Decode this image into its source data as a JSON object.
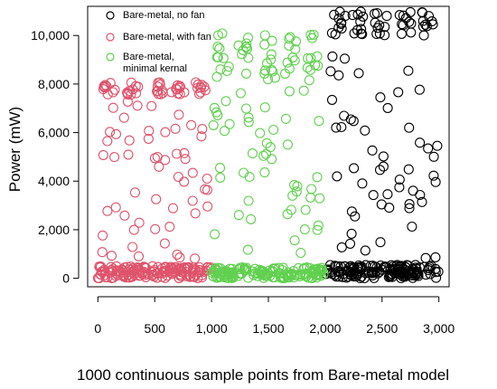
{
  "chart_data": {
    "type": "scatter",
    "title": "",
    "xlabel": "1000 continuous sample points from Bare-metal model",
    "ylabel": "Power (mW)",
    "xlim": [
      -90,
      3090
    ],
    "ylim": [
      -350,
      11200
    ],
    "x_ticks": [
      0,
      500,
      1000,
      1500,
      2000,
      2500,
      3000
    ],
    "x_tick_labels": [
      "0",
      "500",
      "1,000",
      "1,500",
      "2,000",
      "2,500",
      "3,000"
    ],
    "y_ticks": [
      0,
      2000,
      4000,
      6000,
      8000,
      10000
    ],
    "y_tick_labels": [
      "0",
      "2,000",
      "4,000",
      "6,000",
      "8,000",
      "10,000"
    ],
    "grid": false,
    "legend_position": "top-left",
    "marker": "open-circle",
    "series": [
      {
        "name": "Bare-metal, no fan",
        "color": "#000000",
        "x_range": [
          2000,
          3000
        ],
        "idle_level": 300,
        "idle_band": [
          0,
          550
        ],
        "peak_level": 10600,
        "peak_band": [
          10000,
          11000
        ],
        "phase_ramp": [
          200,
          9200
        ]
      },
      {
        "name": "Bare-metal, with fan",
        "color": "#DF536B",
        "x_range": [
          0,
          1000
        ],
        "idle_level": 300,
        "idle_band": [
          0,
          500
        ],
        "peak_level": 7850,
        "peak_band": [
          7550,
          8100
        ],
        "phase_ramp": [
          800,
          7300
        ]
      },
      {
        "name": "Bare-metal,\nminimal kernal",
        "color": "#61D04F",
        "x_range": [
          1000,
          2000
        ],
        "idle_level": 250,
        "idle_band": [
          0,
          450
        ],
        "peak_level": 9300,
        "peak_band": [
          8400,
          10100
        ],
        "phase_ramp": [
          1000,
          8300
        ]
      }
    ]
  }
}
